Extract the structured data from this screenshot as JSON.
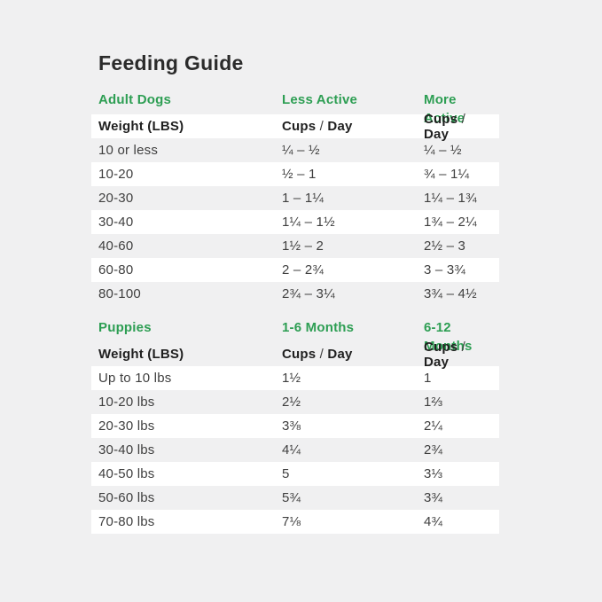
{
  "page": {
    "title": "Feeding Guide"
  },
  "colors": {
    "accent_green": "#2d9e53",
    "page_background": "#f0f0f1",
    "row_highlight": "#ffffff",
    "text_dark": "#2b2b2b"
  },
  "chart_data": [
    {
      "type": "table",
      "title": "Adult Dogs",
      "column_groups": [
        "Adult Dogs",
        "Less Active",
        "More Active"
      ],
      "columns": [
        "Weight (LBS)",
        "Cups / Day",
        "Cups / Day"
      ],
      "rows": [
        [
          "10 or less",
          "¼ – ½",
          "¼ – ½"
        ],
        [
          "10-20",
          "½ – 1",
          "¾ – 1¼"
        ],
        [
          "20-30",
          "1 – 1¼",
          "1¼ – 1¾"
        ],
        [
          "30-40",
          "1¼ – 1½",
          "1¾ – 2¼"
        ],
        [
          "40-60",
          "1½ – 2",
          "2½ – 3"
        ],
        [
          "60-80",
          "2 – 2¾",
          "3 – 3¾"
        ],
        [
          "80-100",
          "2¾ – 3¼",
          "3¾ – 4½"
        ]
      ]
    },
    {
      "type": "table",
      "title": "Puppies",
      "column_groups": [
        "Puppies",
        "1-6 Months",
        "6-12 Months"
      ],
      "columns": [
        "Weight (LBS)",
        "Cups / Day",
        "Cups / Day"
      ],
      "rows": [
        [
          "Up to 10 lbs",
          "1½",
          "1"
        ],
        [
          "10-20 lbs",
          "2½",
          "1⅔"
        ],
        [
          "20-30 lbs",
          "3⅜",
          "2¼"
        ],
        [
          "30-40 lbs",
          "4¼",
          "2¾"
        ],
        [
          "40-50 lbs",
          "5",
          "3⅓"
        ],
        [
          "50-60 lbs",
          "5¾",
          "3¾"
        ],
        [
          "70-80 lbs",
          "7⅛",
          "4¾"
        ]
      ]
    }
  ]
}
